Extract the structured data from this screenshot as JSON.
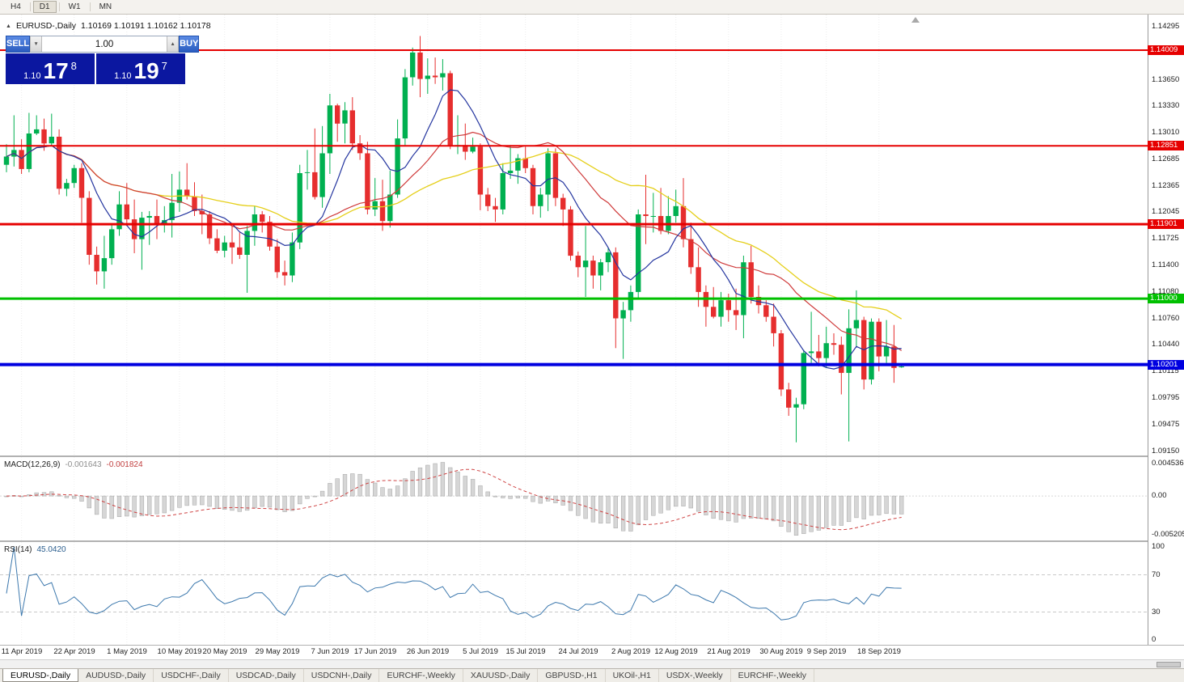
{
  "toolbar": {
    "timeframes": [
      {
        "label": "H4",
        "active": false
      },
      {
        "label": "D1",
        "active": true
      },
      {
        "label": "W1",
        "active": false
      },
      {
        "label": "MN",
        "active": false
      }
    ]
  },
  "icons": {
    "collapse": "▲",
    "volume_down": "▼",
    "volume_up": "▲",
    "shift_marker": "▲"
  },
  "chart_header": {
    "title": "EURUSD-,Daily",
    "ohlc": "1.10169 1.10191 1.10162 1.10178"
  },
  "trade_panel": {
    "sell_label": "SELL",
    "buy_label": "BUY",
    "volume": "1.00",
    "sell_price": {
      "prefix": "1.10",
      "big": "17",
      "sup": "8"
    },
    "buy_price": {
      "prefix": "1.10",
      "big": "19",
      "sup": "7"
    }
  },
  "price_scale": {
    "ticks": [
      "1.14295",
      "1.13980",
      "1.13650",
      "1.13330",
      "1.13010",
      "1.12685",
      "1.12365",
      "1.12045",
      "1.11725",
      "1.11400",
      "1.11080",
      "1.10760",
      "1.10440",
      "1.10115",
      "1.09795",
      "1.09475",
      "1.09150"
    ],
    "tags": [
      {
        "text": "1.14009",
        "price": 1.14009,
        "color": "#e60000"
      },
      {
        "text": "1.12851",
        "price": 1.12851,
        "color": "#e60000"
      },
      {
        "text": "1.11901",
        "price": 1.11901,
        "color": "#e60000"
      },
      {
        "text": "1.11000",
        "price": 1.11,
        "color": "#00c000"
      },
      {
        "text": "1.10201",
        "price": 1.10201,
        "color": "#0000e0"
      }
    ]
  },
  "macd_panel": {
    "name": "MACD(12,26,9)",
    "value_main": "-0.001643",
    "value_signal": "-0.001824",
    "axis": {
      "max": "0.004536",
      "zero": "0.00",
      "min": "-0.005205"
    },
    "range": {
      "max": 0.004536,
      "min": -0.005205
    },
    "params": {
      "fast": 12,
      "slow": 26,
      "signal": 9
    }
  },
  "rsi_panel": {
    "name": "RSI(14)",
    "value": "45.0420",
    "period": 14,
    "axis": [
      "100",
      "70",
      "30",
      "0"
    ],
    "levels": [
      70,
      30
    ]
  },
  "tabs": [
    {
      "label": "EURUSD-,Daily",
      "active": true
    },
    {
      "label": "AUDUSD-,Daily",
      "active": false
    },
    {
      "label": "USDCHF-,Daily",
      "active": false
    },
    {
      "label": "USDCAD-,Daily",
      "active": false
    },
    {
      "label": "USDCNH-,Daily",
      "active": false
    },
    {
      "label": "EURCHF-,Weekly",
      "active": false
    },
    {
      "label": "XAUUSD-,Daily",
      "active": false
    },
    {
      "label": "GBPUSD-,H1",
      "active": false
    },
    {
      "label": "UKOil-,H1",
      "active": false
    },
    {
      "label": "USDX-,Weekly",
      "active": false
    },
    {
      "label": "EURCHF-,Weekly",
      "active": false
    }
  ],
  "chart_data": {
    "type": "candlestick",
    "symbol": "EURUSD",
    "timeframe": "Daily",
    "price_range": {
      "top": 1.1444,
      "bottom": 1.091
    },
    "colors": {
      "up": "#00b050",
      "down": "#e62e2e",
      "ma_fast": "#24359f",
      "ma_mid": "#cf3a3a",
      "ma_slow": "#e5cf1a",
      "macd_hist": "#d6d6d6",
      "macd_signal": "#cf4444",
      "rsi": "#3c78ad"
    },
    "ma_periods": {
      "fast": 8,
      "mid": 21,
      "slow": 34
    },
    "hlines": [
      {
        "price": 1.14009,
        "color": "#e60000",
        "width": 2
      },
      {
        "price": 1.12851,
        "color": "#e60000",
        "width": 2
      },
      {
        "price": 1.11901,
        "color": "#e60000",
        "width": 3
      },
      {
        "price": 1.11,
        "color": "#00c000",
        "width": 3
      },
      {
        "price": 1.10201,
        "color": "#0000e0",
        "width": 4
      }
    ],
    "x_labels": [
      "11 Apr 2019",
      "22 Apr 2019",
      "1 May 2019",
      "10 May 2019",
      "20 May 2019",
      "29 May 2019",
      "7 Jun 2019",
      "17 Jun 2019",
      "26 Jun 2019",
      "5 Jul 2019",
      "15 Jul 2019",
      "24 Jul 2019",
      "2 Aug 2019",
      "12 Aug 2019",
      "21 Aug 2019",
      "30 Aug 2019",
      "9 Sep 2019",
      "18 Sep 2019"
    ],
    "candles": [
      [
        "9 Apr",
        1.1262,
        1.1287,
        1.1253,
        1.1272
      ],
      [
        "10 Apr",
        1.1272,
        1.1322,
        1.126,
        1.128
      ],
      [
        "11 Apr",
        1.128,
        1.1293,
        1.1251,
        1.1257
      ],
      [
        "12 Apr",
        1.1257,
        1.1325,
        1.1253,
        1.13
      ],
      [
        "15 Apr",
        1.13,
        1.1322,
        1.1298,
        1.1305
      ],
      [
        "16 Apr",
        1.1305,
        1.1318,
        1.1279,
        1.1288
      ],
      [
        "17 Apr",
        1.1288,
        1.1324,
        1.1286,
        1.1296
      ],
      [
        "18 Apr",
        1.1296,
        1.1305,
        1.1226,
        1.1233
      ],
      [
        "19 Apr",
        1.1233,
        1.1245,
        1.1224,
        1.124
      ],
      [
        "22 Apr",
        1.124,
        1.1262,
        1.1234,
        1.1258
      ],
      [
        "23 Apr",
        1.1258,
        1.1264,
        1.1192,
        1.1222
      ],
      [
        "24 Apr",
        1.1222,
        1.123,
        1.1141,
        1.1153
      ],
      [
        "25 Apr",
        1.1153,
        1.1163,
        1.1117,
        1.1133
      ],
      [
        "26 Apr",
        1.1133,
        1.1176,
        1.1112,
        1.1149
      ],
      [
        "29 Apr",
        1.1149,
        1.119,
        1.1141,
        1.1184
      ],
      [
        "30 Apr",
        1.1184,
        1.123,
        1.1176,
        1.1214
      ],
      [
        "1 May",
        1.1214,
        1.124,
        1.119,
        1.1196
      ],
      [
        "2 May",
        1.1196,
        1.122,
        1.1155,
        1.1172
      ],
      [
        "3 May",
        1.1172,
        1.1205,
        1.1135,
        1.1198
      ],
      [
        "6 May",
        1.1198,
        1.1206,
        1.1165,
        1.12
      ],
      [
        "7 May",
        1.12,
        1.122,
        1.1172,
        1.119
      ],
      [
        "8 May",
        1.119,
        1.1212,
        1.118,
        1.1195
      ],
      [
        "9 May",
        1.1195,
        1.1251,
        1.1174,
        1.1216
      ],
      [
        "10 May",
        1.1216,
        1.1254,
        1.1205,
        1.1232
      ],
      [
        "13 May",
        1.1232,
        1.1264,
        1.122,
        1.1224
      ],
      [
        "14 May",
        1.1224,
        1.1241,
        1.12,
        1.1206
      ],
      [
        "15 May",
        1.1206,
        1.1226,
        1.1178,
        1.1202
      ],
      [
        "16 May",
        1.1202,
        1.1206,
        1.1166,
        1.1173
      ],
      [
        "17 May",
        1.1173,
        1.1184,
        1.1155,
        1.1158
      ],
      [
        "20 May",
        1.1158,
        1.1176,
        1.115,
        1.1168
      ],
      [
        "21 May",
        1.1168,
        1.1188,
        1.1142,
        1.1162
      ],
      [
        "22 May",
        1.1162,
        1.118,
        1.1148,
        1.1153
      ],
      [
        "23 May",
        1.1153,
        1.1188,
        1.1107,
        1.1182
      ],
      [
        "24 May",
        1.1182,
        1.1212,
        1.1164,
        1.1202
      ],
      [
        "27 May",
        1.1202,
        1.1206,
        1.118,
        1.1193
      ],
      [
        "28 May",
        1.1193,
        1.12,
        1.1158,
        1.1163
      ],
      [
        "29 May",
        1.1163,
        1.1172,
        1.1125,
        1.1132
      ],
      [
        "30 May",
        1.1132,
        1.1146,
        1.1116,
        1.1128
      ],
      [
        "31 May",
        1.1128,
        1.118,
        1.112,
        1.1168
      ],
      [
        "3 Jun",
        1.1168,
        1.1262,
        1.116,
        1.1252
      ],
      [
        "4 Jun",
        1.1252,
        1.128,
        1.1232,
        1.1253
      ],
      [
        "5 Jun",
        1.1253,
        1.1306,
        1.122,
        1.1223
      ],
      [
        "6 Jun",
        1.1223,
        1.1309,
        1.121,
        1.1276
      ],
      [
        "7 Jun",
        1.1276,
        1.1348,
        1.1251,
        1.1334
      ],
      [
        "10 Jun",
        1.1334,
        1.1336,
        1.129,
        1.1312
      ],
      [
        "11 Jun",
        1.1312,
        1.1338,
        1.1288,
        1.1328
      ],
      [
        "12 Jun",
        1.1328,
        1.1344,
        1.128,
        1.1288
      ],
      [
        "13 Jun",
        1.1288,
        1.1298,
        1.1268,
        1.1276
      ],
      [
        "14 Jun",
        1.1276,
        1.129,
        1.1202,
        1.1208
      ],
      [
        "17 Jun",
        1.1208,
        1.1246,
        1.12,
        1.1218
      ],
      [
        "18 Jun",
        1.1218,
        1.1244,
        1.1182,
        1.1194
      ],
      [
        "19 Jun",
        1.1194,
        1.1255,
        1.1186,
        1.1226
      ],
      [
        "20 Jun",
        1.1226,
        1.1317,
        1.1222,
        1.1294
      ],
      [
        "21 Jun",
        1.1294,
        1.1378,
        1.1285,
        1.1368
      ],
      [
        "24 Jun",
        1.1368,
        1.1404,
        1.1358,
        1.1398
      ],
      [
        "25 Jun",
        1.1398,
        1.1418,
        1.1344,
        1.1366
      ],
      [
        "26 Jun",
        1.1366,
        1.1391,
        1.1348,
        1.137
      ],
      [
        "27 Jun",
        1.137,
        1.1392,
        1.136,
        1.1368
      ],
      [
        "28 Jun",
        1.1368,
        1.139,
        1.1352,
        1.1373
      ],
      [
        "1 Jul",
        1.1373,
        1.1376,
        1.1281,
        1.1285
      ],
      [
        "2 Jul",
        1.1285,
        1.1322,
        1.1275,
        1.1286
      ],
      [
        "3 Jul",
        1.1286,
        1.1312,
        1.1268,
        1.1278
      ],
      [
        "4 Jul",
        1.1278,
        1.1295,
        1.1276,
        1.1284
      ],
      [
        "5 Jul",
        1.1284,
        1.1288,
        1.1207,
        1.1226
      ],
      [
        "8 Jul",
        1.1226,
        1.1234,
        1.1206,
        1.1212
      ],
      [
        "9 Jul",
        1.1212,
        1.1222,
        1.1193,
        1.1208
      ],
      [
        "10 Jul",
        1.1208,
        1.1264,
        1.1202,
        1.1252
      ],
      [
        "11 Jul",
        1.1252,
        1.1286,
        1.1245,
        1.1255
      ],
      [
        "12 Jul",
        1.1255,
        1.1275,
        1.1239,
        1.127
      ],
      [
        "15 Jul",
        1.127,
        1.1284,
        1.1252,
        1.1258
      ],
      [
        "16 Jul",
        1.1258,
        1.1262,
        1.1202,
        1.1212
      ],
      [
        "17 Jul",
        1.1212,
        1.1234,
        1.1198,
        1.1226
      ],
      [
        "18 Jul",
        1.1226,
        1.1282,
        1.1206,
        1.1276
      ],
      [
        "19 Jul",
        1.1276,
        1.1282,
        1.1212,
        1.1222
      ],
      [
        "22 Jul",
        1.1222,
        1.1227,
        1.1188,
        1.1208
      ],
      [
        "23 Jul",
        1.1208,
        1.1212,
        1.1146,
        1.1152
      ],
      [
        "24 Jul",
        1.1152,
        1.1157,
        1.1126,
        1.1138
      ],
      [
        "25 Jul",
        1.1138,
        1.1188,
        1.1102,
        1.1146
      ],
      [
        "26 Jul",
        1.1146,
        1.1152,
        1.1112,
        1.1128
      ],
      [
        "29 Jul",
        1.1128,
        1.1148,
        1.111,
        1.1144
      ],
      [
        "30 Jul",
        1.1144,
        1.1162,
        1.1132,
        1.1156
      ],
      [
        "31 Jul",
        1.1156,
        1.1162,
        1.104,
        1.1076
      ],
      [
        "1 Aug",
        1.1076,
        1.1096,
        1.1027,
        1.1086
      ],
      [
        "2 Aug",
        1.1086,
        1.1116,
        1.1072,
        1.1108
      ],
      [
        "5 Aug",
        1.1108,
        1.1208,
        1.1101,
        1.1202
      ],
      [
        "6 Aug",
        1.1202,
        1.125,
        1.1166,
        1.12
      ],
      [
        "7 Aug",
        1.12,
        1.1228,
        1.118,
        1.12
      ],
      [
        "8 Aug",
        1.12,
        1.1234,
        1.1178,
        1.1182
      ],
      [
        "9 Aug",
        1.1182,
        1.1224,
        1.1178,
        1.12
      ],
      [
        "12 Aug",
        1.12,
        1.1232,
        1.1192,
        1.1212
      ],
      [
        "13 Aug",
        1.1212,
        1.1246,
        1.1162,
        1.1172
      ],
      [
        "14 Aug",
        1.1172,
        1.1192,
        1.113,
        1.1138
      ],
      [
        "15 Aug",
        1.1138,
        1.1162,
        1.109,
        1.1108
      ],
      [
        "16 Aug",
        1.1108,
        1.1116,
        1.1066,
        1.109
      ],
      [
        "19 Aug",
        1.109,
        1.1114,
        1.1076,
        1.1078
      ],
      [
        "20 Aug",
        1.1078,
        1.1108,
        1.1066,
        1.1098
      ],
      [
        "21 Aug",
        1.1098,
        1.1106,
        1.1072,
        1.1086
      ],
      [
        "22 Aug",
        1.1086,
        1.1112,
        1.1062,
        1.108
      ],
      [
        "23 Aug",
        1.108,
        1.1152,
        1.1052,
        1.1144
      ],
      [
        "26 Aug",
        1.1144,
        1.1164,
        1.1094,
        1.1102
      ],
      [
        "27 Aug",
        1.1102,
        1.1116,
        1.1082,
        1.1092
      ],
      [
        "28 Aug",
        1.1092,
        1.1098,
        1.1072,
        1.1078
      ],
      [
        "29 Aug",
        1.1078,
        1.1094,
        1.1042,
        1.1058
      ],
      [
        "30 Aug",
        1.1058,
        1.1062,
        1.0982,
        1.099
      ],
      [
        "2 Sep",
        1.099,
        1.0998,
        1.0958,
        1.0968
      ],
      [
        "3 Sep",
        1.0968,
        1.098,
        1.0926,
        1.0972
      ],
      [
        "4 Sep",
        1.0972,
        1.1038,
        1.0966,
        1.1034
      ],
      [
        "5 Sep",
        1.1034,
        1.1084,
        1.1022,
        1.1036
      ],
      [
        "6 Sep",
        1.1036,
        1.1056,
        1.1018,
        1.1028
      ],
      [
        "9 Sep",
        1.1028,
        1.1066,
        1.1016,
        1.1046
      ],
      [
        "10 Sep",
        1.1046,
        1.1058,
        1.1032,
        1.1044
      ],
      [
        "11 Sep",
        1.1044,
        1.1054,
        1.0984,
        1.101
      ],
      [
        "12 Sep",
        1.101,
        1.1087,
        1.0927,
        1.1064
      ],
      [
        "13 Sep",
        1.1064,
        1.111,
        1.1042,
        1.1074
      ],
      [
        "16 Sep",
        1.1074,
        1.1078,
        1.099,
        1.1002
      ],
      [
        "17 Sep",
        1.1002,
        1.1076,
        1.0996,
        1.1072
      ],
      [
        "18 Sep",
        1.1072,
        1.1076,
        1.1012,
        1.103
      ],
      [
        "19 Sep",
        1.103,
        1.1074,
        1.1022,
        1.1042
      ],
      [
        "20 Sep",
        1.1042,
        1.1068,
        1.0998,
        1.1016
      ],
      [
        "23 Sep",
        1.10169,
        1.10191,
        1.10162,
        1.10178
      ]
    ]
  }
}
